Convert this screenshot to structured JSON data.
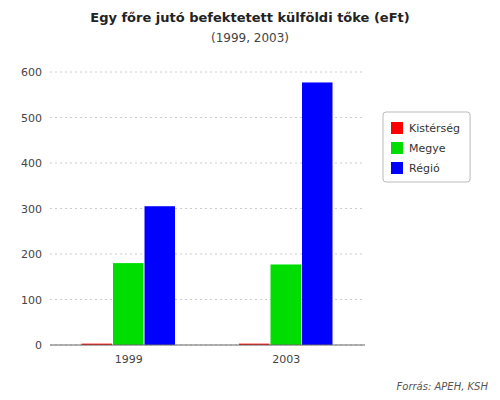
{
  "chart_data": {
    "type": "bar",
    "title": "Egy főre jutó befektetett külföldi tőke (eFt)",
    "subtitle": "(1999, 2003)",
    "footnote": "Forrás: APEH, KSH",
    "categories": [
      "1999",
      "2003"
    ],
    "series": [
      {
        "name": "Kistérség",
        "color": "#ff0000",
        "values": [
          3,
          3
        ]
      },
      {
        "name": "Megye",
        "color": "#00dd00",
        "values": [
          180,
          177
        ]
      },
      {
        "name": "Régió",
        "color": "#0000ff",
        "values": [
          305,
          577
        ]
      }
    ],
    "ylim": [
      0,
      600
    ],
    "yticks": [
      0,
      100,
      200,
      300,
      400,
      500,
      600
    ],
    "grid": true,
    "legend": "right"
  }
}
